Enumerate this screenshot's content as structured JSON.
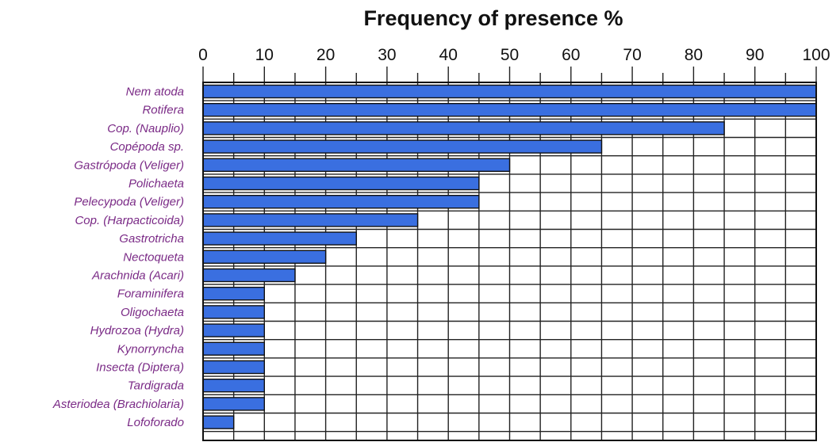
{
  "chart_data": {
    "type": "bar",
    "orientation": "horizontal",
    "title": "Frequency of presence %",
    "xlabel": "",
    "ylabel": "",
    "xlim": [
      0,
      100
    ],
    "x_ticks": [
      0,
      10,
      20,
      30,
      40,
      50,
      60,
      70,
      80,
      90,
      100
    ],
    "x_axis_position": "top",
    "grid": true,
    "bar_color": "#3a6fe0",
    "label_color": "#7a2a86",
    "categories": [
      "Nem atoda",
      "Rotifera",
      "Cop. (Nauplio)",
      "Copépoda sp.",
      "Gastrópoda (Veliger)",
      "Polichaeta",
      "Pelecypoda (Veliger)",
      "Cop. (Harpacticoida)",
      "Gastrotricha",
      "Nectoqueta",
      "Arachnida (Acari)",
      "Foraminifera",
      "Oligochaeta",
      "Hydrozoa (Hydra)",
      "Kynorryncha",
      "Insecta (Diptera)",
      "Tardigrada",
      "Asteriodea (Brachiolaria)",
      "Lofoforado"
    ],
    "values": [
      100,
      100,
      85,
      65,
      50,
      45,
      45,
      35,
      25,
      20,
      15,
      10,
      10,
      10,
      10,
      10,
      10,
      10,
      5
    ]
  }
}
